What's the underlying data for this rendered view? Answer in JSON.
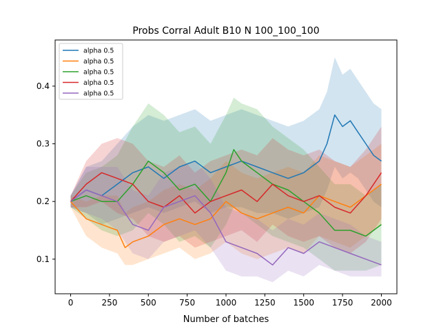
{
  "chart_data": {
    "type": "line",
    "title": "Probs Corral Adult B10 N 100_100_100",
    "xlabel": "Number of batches",
    "ylabel": "",
    "xlim": [
      -100,
      2100
    ],
    "ylim": [
      0.04,
      0.48
    ],
    "xticks": [
      0,
      250,
      500,
      750,
      1000,
      1250,
      1500,
      1750,
      2000
    ],
    "yticks": [
      0.1,
      0.2,
      0.3,
      0.4
    ],
    "ytick_labels": [
      "0.1",
      "0.2",
      "0.3",
      "0.4"
    ],
    "grid": false,
    "legend_position": "upper-left",
    "shaded_band": "variability range around each series",
    "series": [
      {
        "name": "alpha 0.5",
        "color": "#1f77b4",
        "x": [
          0,
          100,
          200,
          300,
          400,
          500,
          600,
          700,
          800,
          900,
          1000,
          1100,
          1200,
          1300,
          1400,
          1500,
          1600,
          1650,
          1700,
          1750,
          1800,
          1850,
          1900,
          1950,
          2000
        ],
        "y": [
          0.2,
          0.22,
          0.21,
          0.23,
          0.25,
          0.26,
          0.24,
          0.26,
          0.27,
          0.25,
          0.26,
          0.27,
          0.26,
          0.25,
          0.24,
          0.25,
          0.27,
          0.3,
          0.35,
          0.33,
          0.34,
          0.32,
          0.3,
          0.28,
          0.27
        ],
        "lower": [
          0.19,
          0.18,
          0.16,
          0.17,
          0.18,
          0.19,
          0.18,
          0.19,
          0.2,
          0.18,
          0.19,
          0.19,
          0.18,
          0.18,
          0.17,
          0.18,
          0.19,
          0.22,
          0.26,
          0.24,
          0.25,
          0.24,
          0.22,
          0.2,
          0.19
        ],
        "upper": [
          0.21,
          0.26,
          0.27,
          0.3,
          0.33,
          0.35,
          0.34,
          0.35,
          0.36,
          0.34,
          0.35,
          0.36,
          0.35,
          0.34,
          0.33,
          0.34,
          0.36,
          0.39,
          0.45,
          0.42,
          0.43,
          0.41,
          0.39,
          0.37,
          0.36
        ]
      },
      {
        "name": "alpha 0.5",
        "color": "#ff7f0e",
        "x": [
          0,
          100,
          200,
          300,
          350,
          400,
          500,
          600,
          700,
          800,
          900,
          1000,
          1100,
          1200,
          1300,
          1400,
          1500,
          1600,
          1700,
          1800,
          1900,
          2000
        ],
        "y": [
          0.2,
          0.17,
          0.16,
          0.15,
          0.12,
          0.13,
          0.14,
          0.16,
          0.17,
          0.16,
          0.17,
          0.2,
          0.18,
          0.17,
          0.18,
          0.19,
          0.18,
          0.21,
          0.2,
          0.19,
          0.21,
          0.23
        ],
        "lower": [
          0.19,
          0.14,
          0.12,
          0.11,
          0.09,
          0.09,
          0.1,
          0.11,
          0.12,
          0.1,
          0.11,
          0.13,
          0.11,
          0.1,
          0.11,
          0.12,
          0.11,
          0.14,
          0.13,
          0.12,
          0.14,
          0.16
        ],
        "upper": [
          0.21,
          0.2,
          0.21,
          0.21,
          0.18,
          0.19,
          0.2,
          0.22,
          0.23,
          0.22,
          0.24,
          0.27,
          0.25,
          0.24,
          0.25,
          0.26,
          0.25,
          0.28,
          0.27,
          0.26,
          0.28,
          0.3
        ]
      },
      {
        "name": "alpha 0.5",
        "color": "#2ca02c",
        "x": [
          0,
          100,
          200,
          300,
          400,
          500,
          600,
          700,
          800,
          900,
          1000,
          1050,
          1100,
          1200,
          1300,
          1400,
          1500,
          1600,
          1700,
          1800,
          1900,
          2000
        ],
        "y": [
          0.2,
          0.21,
          0.2,
          0.2,
          0.23,
          0.27,
          0.25,
          0.22,
          0.23,
          0.2,
          0.25,
          0.29,
          0.27,
          0.25,
          0.23,
          0.22,
          0.2,
          0.18,
          0.15,
          0.15,
          0.14,
          0.16
        ],
        "lower": [
          0.19,
          0.17,
          0.15,
          0.14,
          0.15,
          0.18,
          0.16,
          0.13,
          0.14,
          0.12,
          0.16,
          0.19,
          0.18,
          0.16,
          0.14,
          0.13,
          0.12,
          0.1,
          0.08,
          0.08,
          0.08,
          0.09
        ],
        "upper": [
          0.21,
          0.25,
          0.26,
          0.28,
          0.33,
          0.37,
          0.35,
          0.32,
          0.33,
          0.3,
          0.35,
          0.38,
          0.37,
          0.36,
          0.33,
          0.31,
          0.29,
          0.26,
          0.23,
          0.23,
          0.21,
          0.23
        ]
      },
      {
        "name": "alpha 0.5",
        "color": "#d62728",
        "x": [
          0,
          100,
          200,
          300,
          400,
          500,
          600,
          700,
          800,
          900,
          1000,
          1100,
          1200,
          1300,
          1400,
          1500,
          1600,
          1700,
          1800,
          1900,
          2000
        ],
        "y": [
          0.2,
          0.23,
          0.25,
          0.24,
          0.23,
          0.2,
          0.19,
          0.21,
          0.18,
          0.2,
          0.21,
          0.22,
          0.2,
          0.23,
          0.21,
          0.2,
          0.21,
          0.19,
          0.18,
          0.21,
          0.25
        ],
        "lower": [
          0.19,
          0.19,
          0.2,
          0.18,
          0.17,
          0.14,
          0.13,
          0.14,
          0.12,
          0.13,
          0.14,
          0.15,
          0.13,
          0.16,
          0.14,
          0.13,
          0.14,
          0.12,
          0.11,
          0.13,
          0.17
        ],
        "upper": [
          0.21,
          0.27,
          0.3,
          0.31,
          0.3,
          0.27,
          0.26,
          0.28,
          0.25,
          0.27,
          0.28,
          0.29,
          0.28,
          0.31,
          0.29,
          0.28,
          0.29,
          0.27,
          0.26,
          0.29,
          0.33
        ]
      },
      {
        "name": "alpha 0.5",
        "color": "#9467bd",
        "x": [
          0,
          100,
          200,
          300,
          400,
          500,
          600,
          700,
          800,
          900,
          1000,
          1100,
          1200,
          1300,
          1400,
          1500,
          1600,
          1700,
          1800,
          1900,
          2000
        ],
        "y": [
          0.2,
          0.22,
          0.21,
          0.2,
          0.16,
          0.15,
          0.19,
          0.2,
          0.21,
          0.18,
          0.13,
          0.12,
          0.11,
          0.09,
          0.12,
          0.11,
          0.13,
          0.12,
          0.11,
          0.1,
          0.09
        ],
        "lower": [
          0.19,
          0.18,
          0.17,
          0.15,
          0.11,
          0.1,
          0.13,
          0.14,
          0.15,
          0.12,
          0.08,
          0.07,
          0.07,
          0.06,
          0.08,
          0.07,
          0.09,
          0.08,
          0.07,
          0.07,
          0.07
        ],
        "upper": [
          0.21,
          0.26,
          0.26,
          0.26,
          0.22,
          0.21,
          0.25,
          0.26,
          0.27,
          0.24,
          0.19,
          0.18,
          0.17,
          0.15,
          0.17,
          0.16,
          0.18,
          0.17,
          0.16,
          0.14,
          0.13
        ]
      }
    ]
  }
}
